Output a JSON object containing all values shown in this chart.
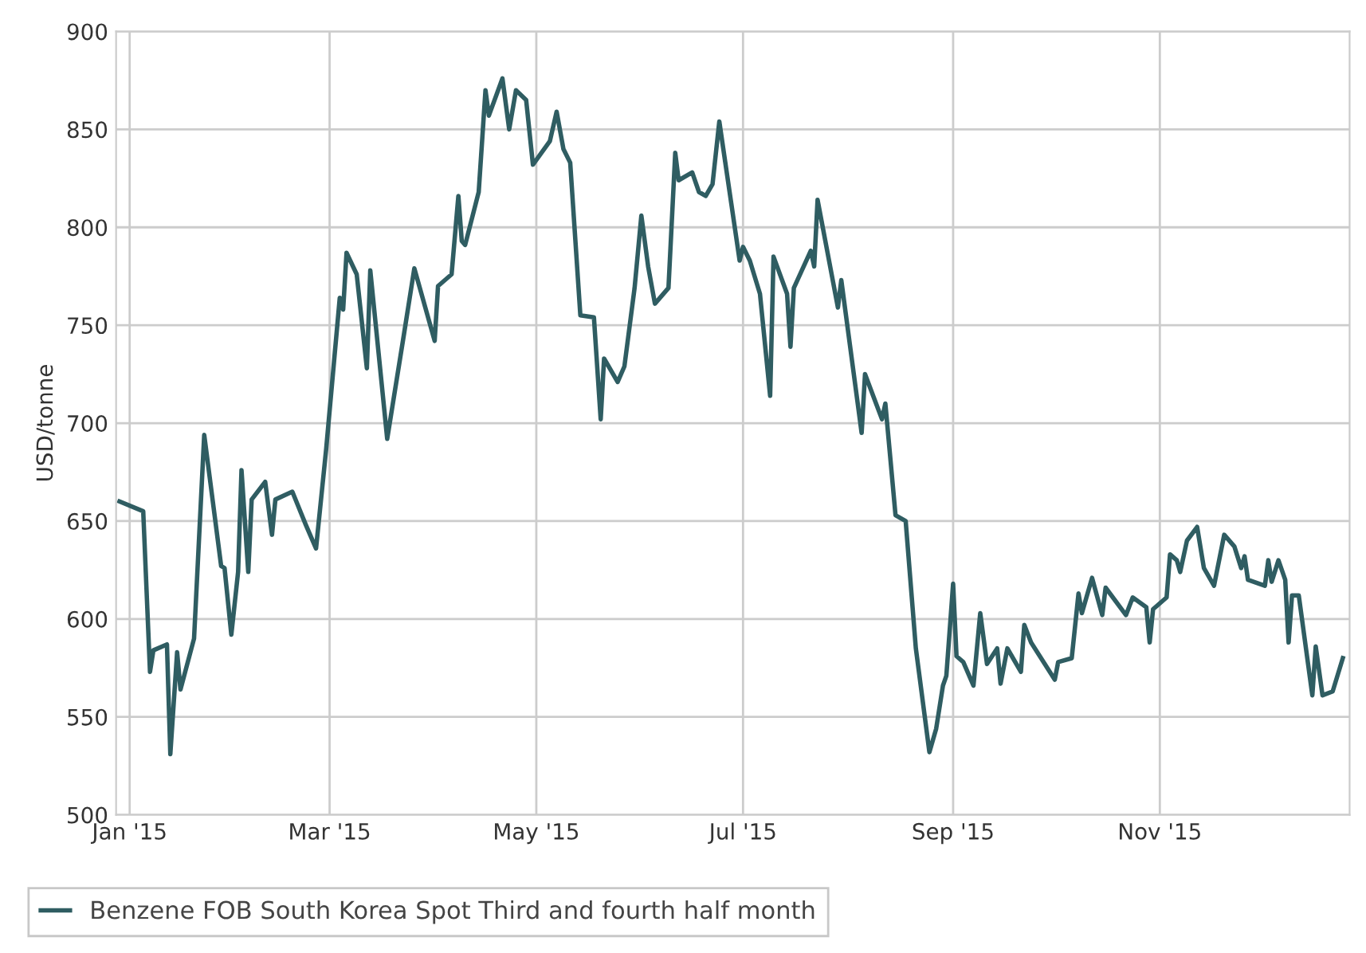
{
  "chart_data": {
    "type": "line",
    "ylabel": "USD/tonne",
    "x": [
      "2014-12-29",
      "2015-01-05",
      "2015-01-07",
      "2015-01-08",
      "2015-01-12",
      "2015-01-13",
      "2015-01-15",
      "2015-01-16",
      "2015-01-20",
      "2015-01-23",
      "2015-01-28",
      "2015-01-29",
      "2015-01-31",
      "2015-02-02",
      "2015-02-03",
      "2015-02-05",
      "2015-02-06",
      "2015-02-10",
      "2015-02-12",
      "2015-02-13",
      "2015-02-18",
      "2015-02-22",
      "2015-02-25",
      "2015-02-28",
      "2015-03-04",
      "2015-03-05",
      "2015-03-06",
      "2015-03-09",
      "2015-03-12",
      "2015-03-13",
      "2015-03-18",
      "2015-03-23",
      "2015-03-26",
      "2015-04-01",
      "2015-04-02",
      "2015-04-06",
      "2015-04-08",
      "2015-04-09",
      "2015-04-10",
      "2015-04-14",
      "2015-04-16",
      "2015-04-17",
      "2015-04-21",
      "2015-04-23",
      "2015-04-25",
      "2015-04-28",
      "2015-04-30",
      "2015-05-05",
      "2015-05-07",
      "2015-05-09",
      "2015-05-11",
      "2015-05-14",
      "2015-05-18",
      "2015-05-20",
      "2015-05-21",
      "2015-05-25",
      "2015-05-27",
      "2015-05-30",
      "2015-06-01",
      "2015-06-03",
      "2015-06-05",
      "2015-06-09",
      "2015-06-11",
      "2015-06-12",
      "2015-06-16",
      "2015-06-18",
      "2015-06-20",
      "2015-06-22",
      "2015-06-24",
      "2015-06-30",
      "2015-07-01",
      "2015-07-03",
      "2015-07-06",
      "2015-07-09",
      "2015-07-10",
      "2015-07-14",
      "2015-07-15",
      "2015-07-16",
      "2015-07-21",
      "2015-07-22",
      "2015-07-23",
      "2015-07-29",
      "2015-07-30",
      "2015-08-05",
      "2015-08-06",
      "2015-08-11",
      "2015-08-12",
      "2015-08-15",
      "2015-08-18",
      "2015-08-21",
      "2015-08-25",
      "2015-08-27",
      "2015-08-29",
      "2015-08-30",
      "2015-09-01",
      "2015-09-02",
      "2015-09-04",
      "2015-09-07",
      "2015-09-09",
      "2015-09-11",
      "2015-09-14",
      "2015-09-15",
      "2015-09-17",
      "2015-09-21",
      "2015-09-22",
      "2015-09-24",
      "2015-10-01",
      "2015-10-02",
      "2015-10-06",
      "2015-10-08",
      "2015-10-09",
      "2015-10-12",
      "2015-10-15",
      "2015-10-16",
      "2015-10-22",
      "2015-10-24",
      "2015-10-28",
      "2015-10-29",
      "2015-10-30",
      "2015-11-03",
      "2015-11-04",
      "2015-11-06",
      "2015-11-07",
      "2015-11-09",
      "2015-11-12",
      "2015-11-14",
      "2015-11-17",
      "2015-11-20",
      "2015-11-23",
      "2015-11-25",
      "2015-11-26",
      "2015-11-27",
      "2015-12-02",
      "2015-12-03",
      "2015-12-04",
      "2015-12-06",
      "2015-12-08",
      "2015-12-09",
      "2015-12-10",
      "2015-12-12",
      "2015-12-16",
      "2015-12-17",
      "2015-12-19",
      "2015-12-22",
      "2015-12-25"
    ],
    "series": [
      {
        "name": "Benzene FOB South Korea Spot Third and fourth half month",
        "color": "#2f5d62",
        "values": [
          660,
          655,
          573,
          584,
          587,
          531,
          583,
          564,
          590,
          694,
          627,
          626,
          592,
          624,
          676,
          624,
          661,
          670,
          643,
          661,
          665,
          648,
          636,
          687,
          764,
          758,
          787,
          776,
          728,
          778,
          692,
          746,
          779,
          742,
          770,
          776,
          816,
          793,
          791,
          818,
          870,
          857,
          876,
          850,
          870,
          865,
          832,
          844,
          859,
          840,
          833,
          755,
          754,
          702,
          733,
          721,
          729,
          769,
          806,
          780,
          761,
          769,
          838,
          824,
          828,
          818,
          816,
          822,
          854,
          783,
          790,
          783,
          766,
          714,
          785,
          766,
          739,
          769,
          788,
          780,
          814,
          759,
          773,
          695,
          725,
          702,
          710,
          653,
          650,
          585,
          532,
          544,
          566,
          571,
          618,
          581,
          578,
          566,
          603,
          577,
          585,
          567,
          585,
          573,
          597,
          588,
          569,
          578,
          580,
          613,
          603,
          621,
          602,
          616,
          602,
          611,
          606,
          588,
          605,
          611,
          633,
          630,
          624,
          640,
          647,
          626,
          617,
          643,
          637,
          626,
          632,
          620,
          617,
          630,
          619,
          630,
          620,
          588,
          612,
          612,
          561,
          586,
          561,
          563,
          580
        ]
      }
    ],
    "xlim": [
      "2014-12-28",
      "2015-12-27"
    ],
    "xticks": [
      {
        "value": "2015-01-01",
        "label": "Jan '15"
      },
      {
        "value": "2015-03-01",
        "label": "Mar '15"
      },
      {
        "value": "2015-05-01",
        "label": "May '15"
      },
      {
        "value": "2015-07-01",
        "label": "Jul '15"
      },
      {
        "value": "2015-09-01",
        "label": "Sep '15"
      },
      {
        "value": "2015-11-01",
        "label": "Nov '15"
      }
    ],
    "ylim": [
      500,
      900
    ],
    "yticks": [
      500,
      550,
      600,
      650,
      700,
      750,
      800,
      850,
      900
    ],
    "grid": true,
    "legend": "bottom",
    "marker": "none",
    "line_style": "solid"
  }
}
